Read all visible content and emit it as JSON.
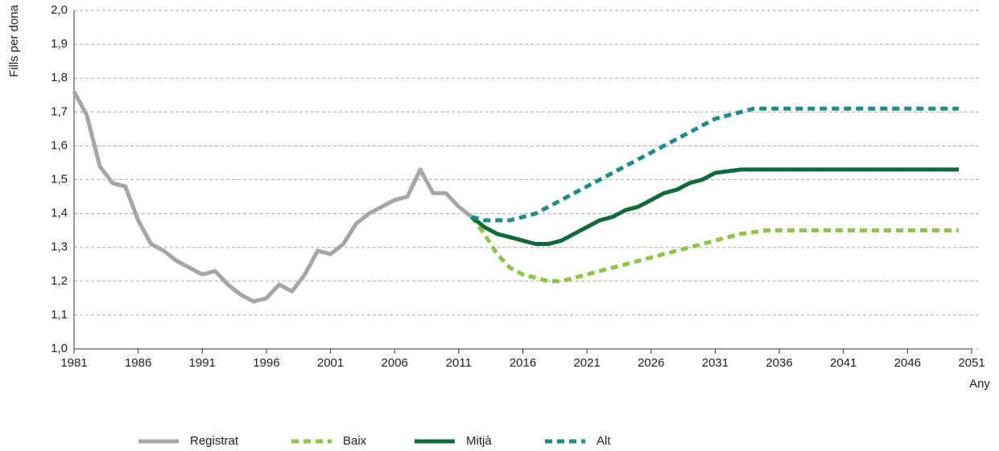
{
  "chart_data": {
    "type": "line",
    "y_label": "Fills per dona",
    "x_label": "Any",
    "x": [
      1981,
      1982,
      1983,
      1984,
      1985,
      1986,
      1987,
      1988,
      1989,
      1990,
      1991,
      1992,
      1993,
      1994,
      1995,
      1996,
      1997,
      1998,
      1999,
      2000,
      2001,
      2002,
      2003,
      2004,
      2005,
      2006,
      2007,
      2008,
      2009,
      2010,
      2011,
      2012,
      2013,
      2014,
      2015,
      2016,
      2017,
      2018,
      2019,
      2020,
      2021,
      2022,
      2023,
      2024,
      2025,
      2026,
      2027,
      2028,
      2029,
      2030,
      2031,
      2032,
      2033,
      2034,
      2035,
      2036,
      2037,
      2038,
      2039,
      2040,
      2041,
      2042,
      2043,
      2044,
      2045,
      2046,
      2047,
      2048,
      2049,
      2050
    ],
    "series": [
      {
        "name": "Registrat",
        "color": "#a6a6a6",
        "dashed": false,
        "values": [
          1.76,
          1.69,
          1.54,
          1.49,
          1.48,
          1.38,
          1.31,
          1.29,
          1.26,
          1.24,
          1.22,
          1.23,
          1.19,
          1.16,
          1.14,
          1.15,
          1.19,
          1.17,
          1.22,
          1.29,
          1.28,
          1.31,
          1.37,
          1.4,
          1.42,
          1.44,
          1.45,
          1.53,
          1.46,
          1.46,
          1.42,
          1.39,
          null,
          null,
          null,
          null,
          null,
          null,
          null,
          null,
          null,
          null,
          null,
          null,
          null,
          null,
          null,
          null,
          null,
          null,
          null,
          null,
          null,
          null,
          null,
          null,
          null,
          null,
          null,
          null,
          null,
          null,
          null,
          null,
          null,
          null,
          null,
          null,
          null,
          null
        ]
      },
      {
        "name": "Baix",
        "color": "#8dc63f",
        "dashed": true,
        "values": [
          null,
          null,
          null,
          null,
          null,
          null,
          null,
          null,
          null,
          null,
          null,
          null,
          null,
          null,
          null,
          null,
          null,
          null,
          null,
          null,
          null,
          null,
          null,
          null,
          null,
          null,
          null,
          null,
          null,
          null,
          null,
          1.39,
          1.34,
          1.28,
          1.24,
          1.22,
          1.21,
          1.2,
          1.2,
          1.21,
          1.22,
          1.23,
          1.24,
          1.25,
          1.26,
          1.27,
          1.28,
          1.29,
          1.3,
          1.31,
          1.32,
          1.33,
          1.34,
          1.345,
          1.35,
          1.35,
          1.35,
          1.35,
          1.35,
          1.35,
          1.35,
          1.35,
          1.35,
          1.35,
          1.35,
          1.35,
          1.35,
          1.35,
          1.35,
          1.35
        ]
      },
      {
        "name": "Mitjà",
        "color": "#0b6b3a",
        "dashed": false,
        "values": [
          null,
          null,
          null,
          null,
          null,
          null,
          null,
          null,
          null,
          null,
          null,
          null,
          null,
          null,
          null,
          null,
          null,
          null,
          null,
          null,
          null,
          null,
          null,
          null,
          null,
          null,
          null,
          null,
          null,
          null,
          null,
          1.39,
          1.36,
          1.34,
          1.33,
          1.32,
          1.31,
          1.31,
          1.32,
          1.34,
          1.36,
          1.38,
          1.39,
          1.41,
          1.42,
          1.44,
          1.46,
          1.47,
          1.49,
          1.5,
          1.52,
          1.525,
          1.53,
          1.53,
          1.53,
          1.53,
          1.53,
          1.53,
          1.53,
          1.53,
          1.53,
          1.53,
          1.53,
          1.53,
          1.53,
          1.53,
          1.53,
          1.53,
          1.53,
          1.53
        ]
      },
      {
        "name": "Alt",
        "color": "#1a8f8a",
        "dashed": true,
        "values": [
          null,
          null,
          null,
          null,
          null,
          null,
          null,
          null,
          null,
          null,
          null,
          null,
          null,
          null,
          null,
          null,
          null,
          null,
          null,
          null,
          null,
          null,
          null,
          null,
          null,
          null,
          null,
          null,
          null,
          null,
          null,
          1.39,
          1.38,
          1.38,
          1.38,
          1.39,
          1.4,
          1.42,
          1.44,
          1.46,
          1.48,
          1.5,
          1.52,
          1.54,
          1.56,
          1.58,
          1.6,
          1.62,
          1.64,
          1.66,
          1.68,
          1.69,
          1.7,
          1.71,
          1.71,
          1.71,
          1.71,
          1.71,
          1.71,
          1.71,
          1.71,
          1.71,
          1.71,
          1.71,
          1.71,
          1.71,
          1.71,
          1.71,
          1.71,
          1.71
        ]
      }
    ],
    "xlim": [
      1981,
      2051
    ],
    "xticks": [
      1981,
      1986,
      1991,
      1996,
      2001,
      2006,
      2011,
      2016,
      2021,
      2026,
      2031,
      2036,
      2041,
      2046,
      2051
    ],
    "ylim": [
      1.0,
      2.0
    ],
    "yticks": [
      {
        "value": 1.0,
        "label": "1,0"
      },
      {
        "value": 1.1,
        "label": "1,1"
      },
      {
        "value": 1.2,
        "label": "1,2"
      },
      {
        "value": 1.3,
        "label": "1,3"
      },
      {
        "value": 1.4,
        "label": "1,4"
      },
      {
        "value": 1.5,
        "label": "1,5"
      },
      {
        "value": 1.6,
        "label": "1,6"
      },
      {
        "value": 1.7,
        "label": "1,7"
      },
      {
        "value": 1.8,
        "label": "1,8"
      },
      {
        "value": 1.9,
        "label": "1,9"
      },
      {
        "value": 2.0,
        "label": "2,0"
      }
    ],
    "grid": true,
    "legend": "bottom"
  }
}
